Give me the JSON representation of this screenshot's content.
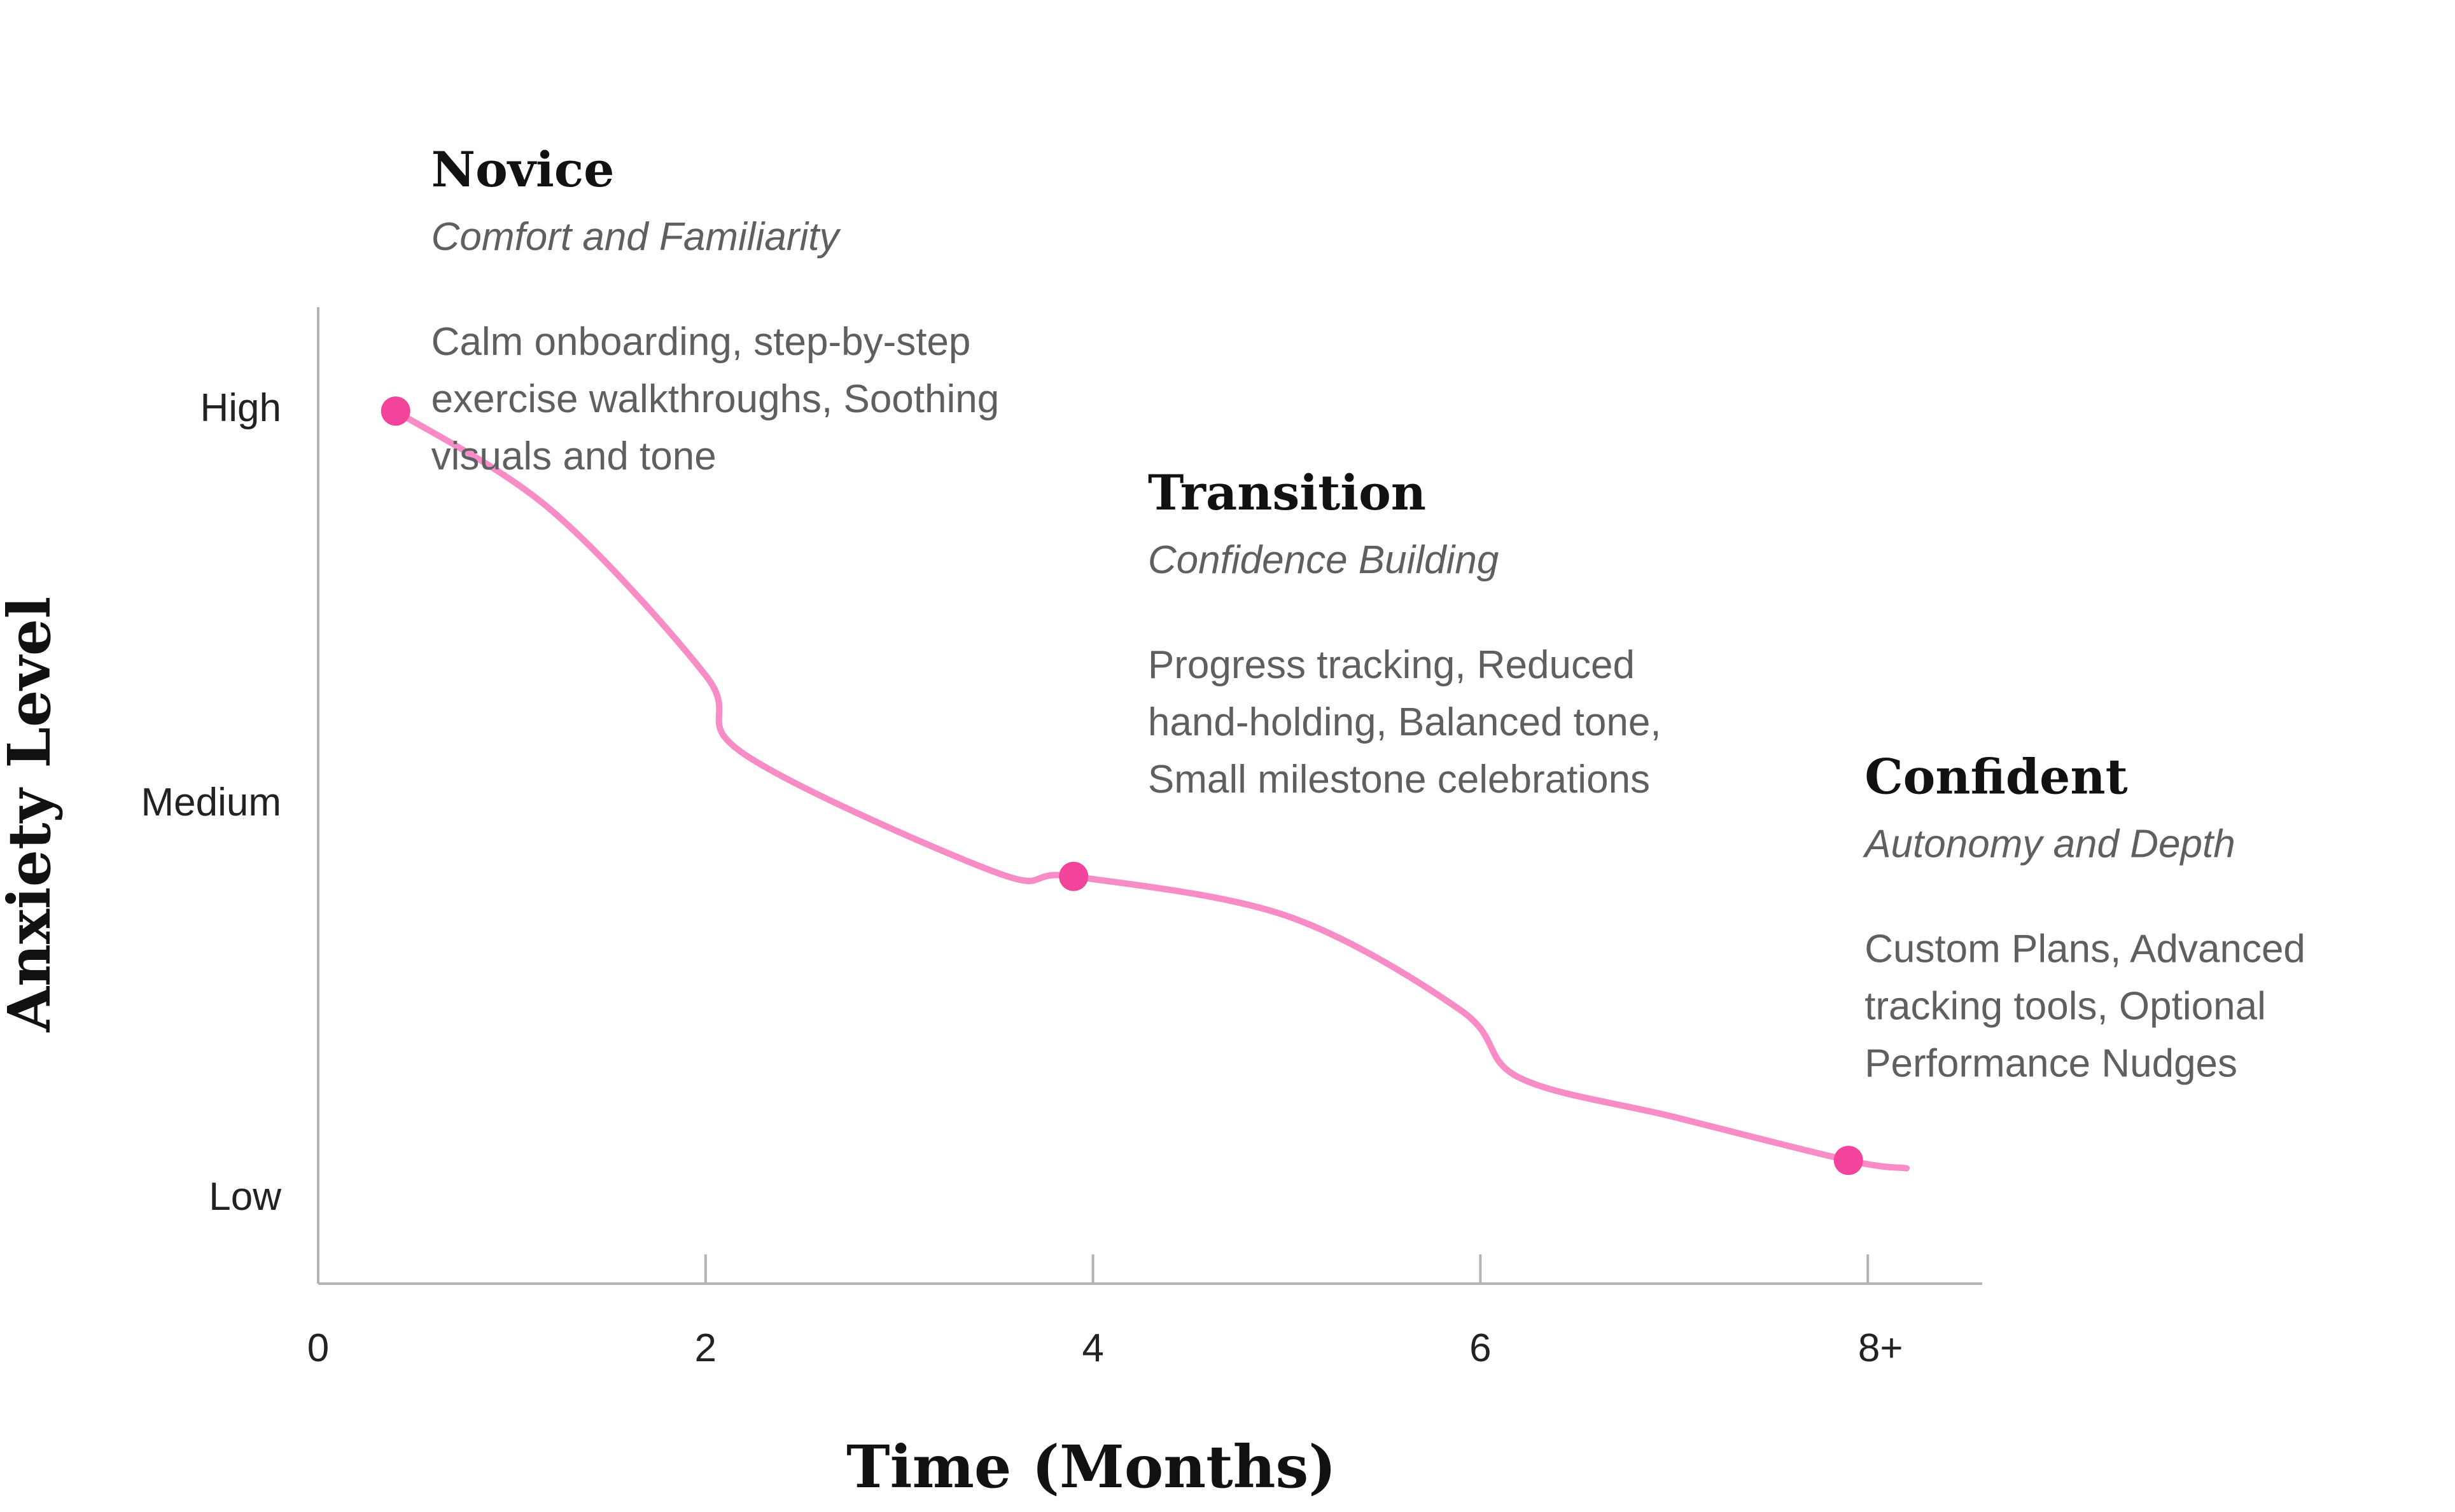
{
  "chart_data": {
    "type": "line",
    "xlabel": "Time (Months)",
    "ylabel": "Anxiety Level",
    "xlim": [
      0,
      8.6
    ],
    "ylim": [
      -0.22,
      2.4
    ],
    "x_ticks": [
      {
        "value": 0,
        "label": "0"
      },
      {
        "value": 2,
        "label": "2"
      },
      {
        "value": 4,
        "label": "4"
      },
      {
        "value": 6,
        "label": "6"
      },
      {
        "value": 8,
        "label": "8+"
      }
    ],
    "y_ticks": [
      {
        "value": 0,
        "label": "Low"
      },
      {
        "value": 1,
        "label": "Medium"
      },
      {
        "value": 2,
        "label": "High"
      }
    ],
    "line_color": "#f78cc6",
    "point_color": "#f2449a",
    "series": [
      {
        "x": [
          0.4,
          1.2,
          2.0,
          2.2,
          3.5,
          3.9,
          5.0,
          5.9,
          6.2,
          7.0,
          7.9,
          8.2
        ],
        "y": [
          1.99,
          1.74,
          1.32,
          1.12,
          0.82,
          0.81,
          0.71,
          0.47,
          0.3,
          0.2,
          0.09,
          0.07
        ]
      }
    ],
    "points": [
      {
        "x": 0.4,
        "y": 1.99
      },
      {
        "x": 3.9,
        "y": 0.81
      },
      {
        "x": 7.9,
        "y": 0.09
      }
    ],
    "annotations": [
      {
        "x": 0.6,
        "y": 2.56,
        "title": "Novice",
        "subtitle": "Comfort and Familiarity",
        "lines": [
          "Calm onboarding, step-by-step",
          "exercise walkthroughs, Soothing",
          "visuals and tone"
        ]
      },
      {
        "x": 4.3,
        "y": 1.74,
        "title": "Transition",
        "subtitle": "Confidence Building",
        "lines": [
          "Progress tracking, Reduced",
          "hand-holding, Balanced tone,",
          "Small milestone celebrations"
        ]
      },
      {
        "x": 8.0,
        "y": 1.02,
        "title": "Confident",
        "subtitle": "Autonomy and Depth",
        "lines": [
          "Custom Plans, Advanced",
          "tracking tools, Optional",
          "Performance Nudges"
        ]
      }
    ]
  }
}
